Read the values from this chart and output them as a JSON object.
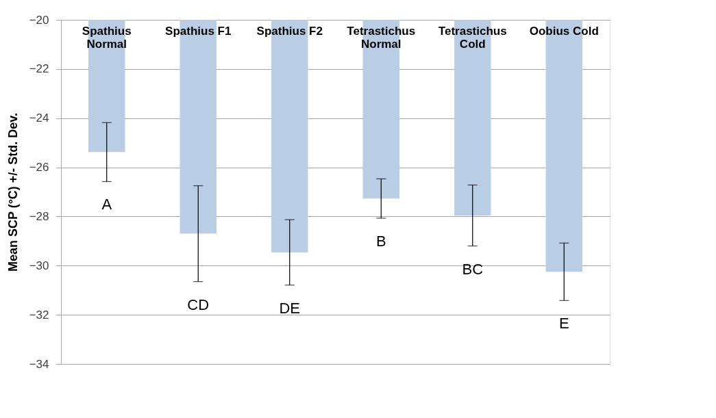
{
  "chart_data": {
    "type": "bar",
    "categories": [
      "Spathius Normal",
      "Spathius F1",
      "Spathius F2",
      "Tetrastichus Normal",
      "Tetrastichus Cold",
      "Oobius Cold"
    ],
    "values": [
      -25.38,
      -28.7,
      -29.46,
      -27.27,
      -27.96,
      -30.25
    ],
    "errors": [
      1.2,
      1.95,
      1.33,
      0.8,
      1.24,
      1.17
    ],
    "color": "#b9cde5",
    "ylabel": "Mean SCP (°C) +/- Std. Dev.",
    "ylim": [
      -34,
      -20
    ],
    "yticks": [
      -34,
      -32,
      -30,
      -28,
      -26,
      -24,
      -22,
      -20
    ],
    "grid": "y",
    "legend": false,
    "annotations": [
      "A",
      "CD",
      "DE",
      "B",
      "BC",
      "E"
    ]
  }
}
